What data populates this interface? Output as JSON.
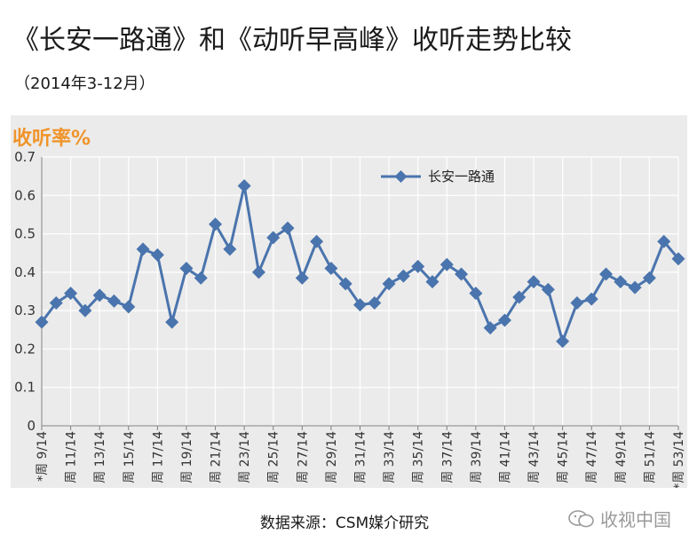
{
  "title": "《长安一路通》和《动听早高峰》收听走势比较",
  "subtitle": "（2014年3-12月）",
  "source": "数据来源：CSM媒介研究",
  "watermark": {
    "text": "收视中国",
    "icon": "wechat-icon"
  },
  "chart_data": {
    "type": "line",
    "ylabel": "收听率%",
    "ylim": [
      0,
      0.7
    ],
    "yticks": [
      "0",
      "0.1",
      "0.2",
      "0.3",
      "0.4",
      "0.5",
      "0.6",
      "0.7"
    ],
    "legend_position": "top-right",
    "grid": true,
    "x": [
      9,
      10,
      11,
      12,
      13,
      14,
      15,
      16,
      17,
      18,
      19,
      20,
      21,
      22,
      23,
      24,
      25,
      26,
      27,
      28,
      29,
      30,
      31,
      32,
      33,
      34,
      35,
      36,
      37,
      38,
      39,
      40,
      41,
      42,
      43,
      44,
      45,
      46,
      47,
      48,
      49,
      50,
      51,
      52,
      53
    ],
    "xtick_labels": [
      "*周 9/14",
      "周 11/14",
      "周 13/14",
      "周 15/14",
      "周 17/14",
      "周 19/14",
      "周 21/14",
      "周 23/14",
      "周 25/14",
      "周 27/14",
      "周 29/14",
      "周 31/14",
      "周 33/14",
      "周 35/14",
      "周 37/14",
      "周 39/14",
      "周 41/14",
      "周 43/14",
      "周 45/14",
      "周 47/14",
      "周 49/14",
      "周 51/14",
      "*周 53/14"
    ],
    "series": [
      {
        "name": "长安一路通",
        "color": "#4a74ad",
        "values": [
          0.27,
          0.32,
          0.345,
          0.3,
          0.34,
          0.325,
          0.31,
          0.46,
          0.445,
          0.27,
          0.41,
          0.385,
          0.525,
          0.46,
          0.625,
          0.4,
          0.49,
          0.515,
          0.385,
          0.48,
          0.41,
          0.37,
          0.315,
          0.32,
          0.37,
          0.39,
          0.415,
          0.375,
          0.42,
          0.395,
          0.345,
          0.255,
          0.275,
          0.335,
          0.375,
          0.355,
          0.22,
          0.32,
          0.33,
          0.395,
          0.375,
          0.36,
          0.385,
          0.48,
          0.435
        ]
      }
    ]
  }
}
